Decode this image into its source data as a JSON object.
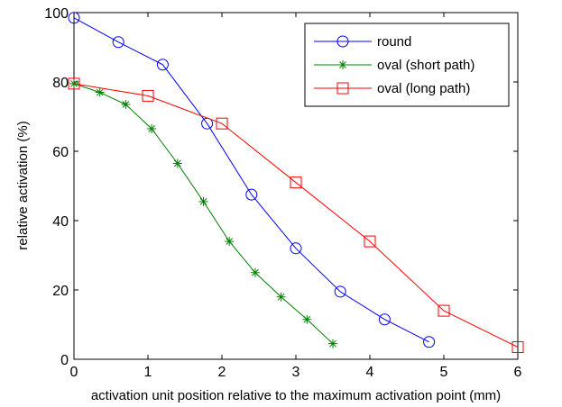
{
  "chart_data": {
    "type": "line",
    "xlabel": "activation unit position relative to the maximum activation point (mm)",
    "ylabel": "relative activation (%)",
    "xlim": [
      0,
      6
    ],
    "ylim": [
      0,
      100
    ],
    "xticks": [
      "0",
      "1",
      "2",
      "3",
      "4",
      "5",
      "6"
    ],
    "yticks": [
      "0",
      "20",
      "40",
      "60",
      "80",
      "100"
    ],
    "grid": false,
    "legend_position": "top-right",
    "series": [
      {
        "name": "round",
        "color": "#0000ff",
        "marker": "circle",
        "x": [
          0,
          0.6,
          1.2,
          1.8,
          2.4,
          3.0,
          3.6,
          4.2,
          4.8
        ],
        "y": [
          98.5,
          91.5,
          85,
          68,
          47.5,
          32,
          19.5,
          11.5,
          5
        ]
      },
      {
        "name": "oval (short path)",
        "color": "#008000",
        "marker": "asterisk",
        "x": [
          0,
          0.35,
          0.7,
          1.05,
          1.4,
          1.75,
          2.1,
          2.45,
          2.8,
          3.15,
          3.5
        ],
        "y": [
          79.5,
          77,
          73.5,
          66.5,
          56.5,
          45.5,
          34,
          25,
          18,
          11.5,
          4.5
        ]
      },
      {
        "name": "oval (long path)",
        "color": "#ff0000",
        "marker": "square",
        "x": [
          0,
          1,
          2,
          3,
          4,
          5,
          6
        ],
        "y": [
          79.5,
          76,
          68,
          51,
          34,
          14,
          3.5
        ]
      }
    ]
  }
}
